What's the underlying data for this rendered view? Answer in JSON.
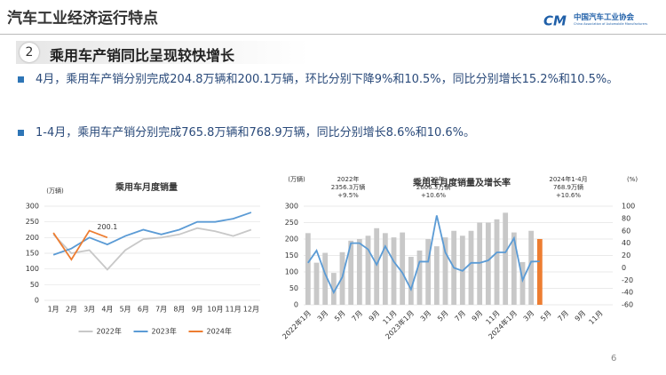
{
  "header": {
    "title": "汽车工业经济运行特点",
    "logo": "中国汽车工业协会",
    "logo_sub": "China Association of Automobile Manufacturers"
  },
  "section": {
    "number": "2",
    "title": "乘用车产销同比呈现较快增长"
  },
  "bullets": [
    "4月，乘用车产销分别完成204.8万辆和200.1万辆，环比分别下降9%和10.5%，同比分别增长15.2%和10.5%。",
    "1-4月，乘用车产销分别完成765.8万辆和768.9万辆，同比分别增长8.6%和10.6%。"
  ],
  "page_number": "6",
  "chart_data": [
    {
      "type": "line",
      "title": "乘用车月度销量",
      "y_label": "(万辆)",
      "categories": [
        "1月",
        "2月",
        "3月",
        "4月",
        "5月",
        "6月",
        "7月",
        "8月",
        "9月",
        "10月",
        "11月",
        "12月"
      ],
      "ylim": [
        0,
        300
      ],
      "yticks": [
        0,
        50,
        100,
        150,
        200,
        250,
        300
      ],
      "grid": true,
      "legend": "bottom",
      "series": [
        {
          "name": "2022年",
          "color": "#c8c8c8",
          "values": [
            210,
            150,
            160,
            98,
            160,
            195,
            200,
            210,
            230,
            220,
            205,
            225
          ]
        },
        {
          "name": "2023年",
          "color": "#5b9bd5",
          "values": [
            145,
            165,
            200,
            178,
            205,
            225,
            210,
            225,
            250,
            250,
            260,
            280
          ]
        },
        {
          "name": "2024年",
          "color": "#ed7d31",
          "values": [
            215,
            130,
            222,
            200.1,
            null,
            null,
            null,
            null,
            null,
            null,
            null,
            null
          ]
        }
      ]
    },
    {
      "type": "combo",
      "title": "乘用车月度销量及增长率",
      "y_label": "(万辆)",
      "y2_label": "(%)",
      "categories": [
        "2022年1月",
        null,
        "3月",
        null,
        "5月",
        null,
        "7月",
        null,
        "9月",
        null,
        "11月",
        null,
        "2023年1月",
        null,
        "3月",
        null,
        "5月",
        null,
        "7月",
        null,
        "9月",
        null,
        "11月",
        null,
        "2024年1月",
        null,
        "3月",
        null,
        "5月",
        null,
        "7月",
        null,
        "9月",
        null,
        "11月",
        null
      ],
      "ylim": [
        0,
        300
      ],
      "yticks": [
        0,
        50,
        100,
        150,
        200,
        250,
        300
      ],
      "y2lim": [
        -60,
        100
      ],
      "y2ticks": [
        -60,
        -40,
        -20,
        0,
        20,
        40,
        60,
        80,
        100
      ],
      "grid": true,
      "series": [
        {
          "type": "bar",
          "colors": [
            "#c8c8c8",
            "#c8c8c8",
            "#c8c8c8",
            "#c8c8c8",
            "#c8c8c8",
            "#c8c8c8",
            "#c8c8c8",
            "#c8c8c8",
            "#c8c8c8",
            "#c8c8c8",
            "#c8c8c8",
            "#c8c8c8",
            "#c8c8c8",
            "#c8c8c8",
            "#c8c8c8",
            "#c8c8c8",
            "#c8c8c8",
            "#c8c8c8",
            "#c8c8c8",
            "#c8c8c8",
            "#c8c8c8",
            "#c8c8c8",
            "#c8c8c8",
            "#c8c8c8",
            "#c8c8c8",
            "#c8c8c8",
            "#c8c8c8",
            "#ed7d31",
            "#c8c8c8",
            "#c8c8c8",
            "#c8c8c8",
            "#c8c8c8",
            "#c8c8c8",
            "#c8c8c8",
            "#c8c8c8",
            "#c8c8c8"
          ],
          "values": [
            218,
            128,
            158,
            97,
            160,
            195,
            200,
            210,
            233,
            218,
            205,
            220,
            146,
            165,
            200,
            178,
            205,
            225,
            210,
            225,
            250,
            250,
            260,
            280,
            220,
            130,
            225,
            200.1,
            null,
            null,
            null,
            null,
            null,
            null,
            null,
            null
          ]
        },
        {
          "type": "line",
          "axis": "y2",
          "color": "#5b9bd5",
          "values": [
            8,
            28,
            -10,
            -40,
            -15,
            40,
            40,
            30,
            5,
            35,
            10,
            -8,
            -35,
            10,
            10,
            85,
            25,
            0,
            -5,
            8,
            8,
            12,
            25,
            25,
            48,
            -20,
            10,
            10.5,
            null,
            null,
            null,
            null,
            null,
            null,
            null,
            null
          ]
        }
      ],
      "annotations": [
        [
          "2022年",
          "2356.3万辆",
          "+9.5%"
        ],
        [
          "2023年",
          "2606.3万辆",
          "+10.6%"
        ],
        [
          "2024年1-4月",
          "768.9万辆",
          "+10.6%"
        ]
      ]
    }
  ]
}
